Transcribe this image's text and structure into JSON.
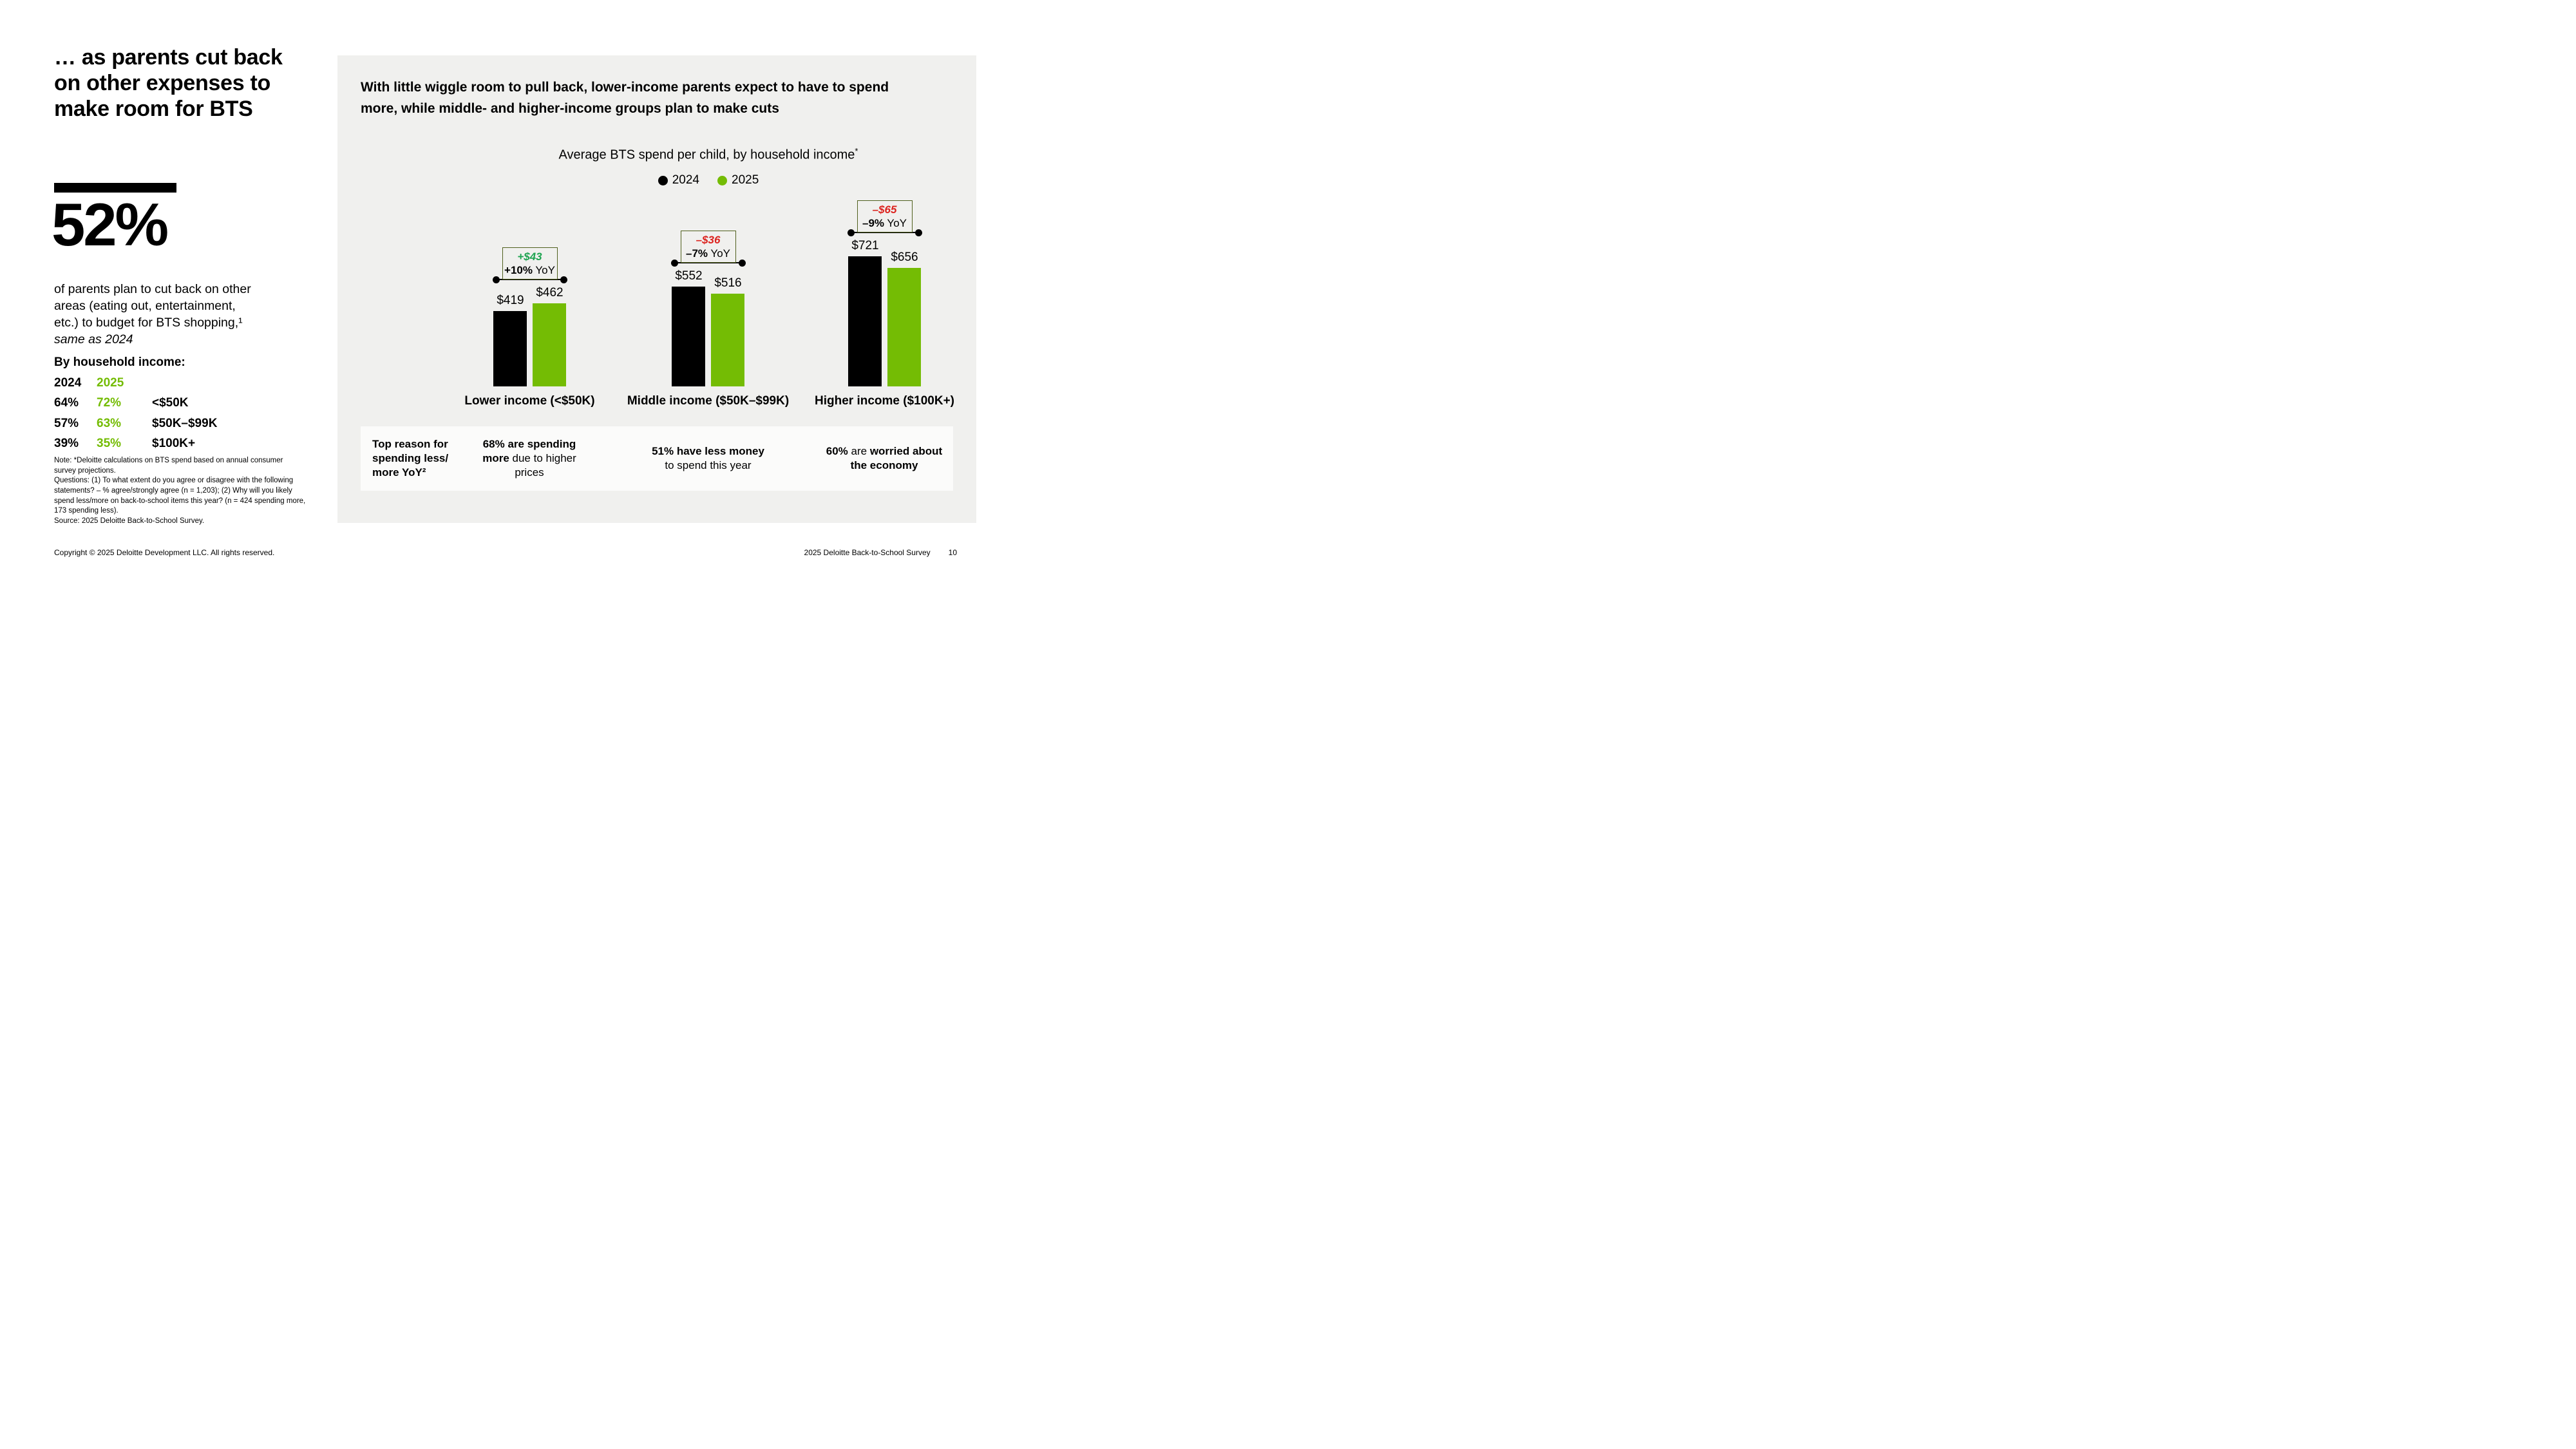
{
  "colors": {
    "green_2025": "#74BC04",
    "accent_green": "#1FA451",
    "negative_red": "#DC231E",
    "box_border_olive": "#50601E",
    "panel_background": "#F0F0EE",
    "band_background": "#FBFBFA",
    "bar_2024_black": "#000000"
  },
  "left": {
    "title_lines": [
      "… as parents cut back",
      "on other expenses to",
      "make room for BTS"
    ],
    "stat_value": "52%",
    "stat_lines": [
      "of parents plan to cut back on other",
      "areas (eating out, entertainment,",
      "etc.) to budget for BTS shopping,¹"
    ],
    "stat_italic": "same as 2024",
    "income_heading": "By household income:",
    "income_table": {
      "col_2024": "2024",
      "col_2025": "2025",
      "rows": [
        {
          "v2024": "64%",
          "v2025": "72%",
          "label": "<$50K"
        },
        {
          "v2024": "57%",
          "v2025": "63%",
          "label": "$50K–$99K"
        },
        {
          "v2024": "39%",
          "v2025": "35%",
          "label": "$100K+"
        }
      ]
    },
    "note_lines": [
      "Note: *Deloitte calculations on BTS spend based on annual consumer survey projections.",
      "Questions: (1) To what extent do you agree or disagree with the following statements? – % agree/strongly agree (n = 1,203); (2) Why will you likely spend less/more on back-to-school items this year? (n = 424 spending more, 173 spending less).",
      "Source: 2025 Deloitte Back-to-School Survey."
    ]
  },
  "panel": {
    "heading_lines": [
      "With little wiggle room to pull back, lower-income parents expect to have to spend",
      "more, while middle- and higher-income groups plan to make cuts"
    ],
    "chart_title": "Average BTS spend per child, by household income",
    "chart_title_sup": "*",
    "legend": [
      {
        "label": "2024",
        "color": "#000000"
      },
      {
        "label": "2025",
        "color": "#74BC04"
      }
    ]
  },
  "chart_data": {
    "type": "bar",
    "title": "Average BTS spend per child, by household income*",
    "categories": [
      "Lower income (<$50K)",
      "Middle income ($50K–$99K)",
      "Higher income ($100K+)"
    ],
    "series": [
      {
        "name": "2024",
        "values": [
          419,
          552,
          721
        ],
        "labels": [
          "$419",
          "$552",
          "$721"
        ],
        "color": "#000000"
      },
      {
        "name": "2025",
        "values": [
          462,
          516,
          656
        ],
        "labels": [
          "$462",
          "$516",
          "$656"
        ],
        "color": "#74BC04"
      }
    ],
    "annotations": [
      {
        "delta": "+$43",
        "yoy_bold": "+10%",
        "yoy_rest": " YoY",
        "tone": "positive"
      },
      {
        "delta": "–$36",
        "yoy_bold": "–7%",
        "yoy_rest": " YoY",
        "tone": "negative"
      },
      {
        "delta": "–$65",
        "yoy_bold": "–9%",
        "yoy_rest": " YoY",
        "tone": "negative"
      }
    ],
    "legend_position": "top",
    "grid": false,
    "ylim": [
      0,
      800
    ],
    "currency": "USD"
  },
  "stats_band": {
    "intro_lines": [
      "Top reason for",
      "spending less/",
      "more YoY²"
    ],
    "items": [
      {
        "bold": "68% are spending more",
        "rest": " due to higher prices"
      },
      {
        "bold": "51% have less money",
        "rest": " to spend this year"
      },
      {
        "b1": "60%",
        "mid": " are ",
        "b2": "worried about the economy"
      }
    ]
  },
  "footer": {
    "left": "Copyright © 2025 Deloitte Development LLC. All rights reserved.",
    "right": "2025 Deloitte Back-to-School Survey",
    "page": "10"
  }
}
